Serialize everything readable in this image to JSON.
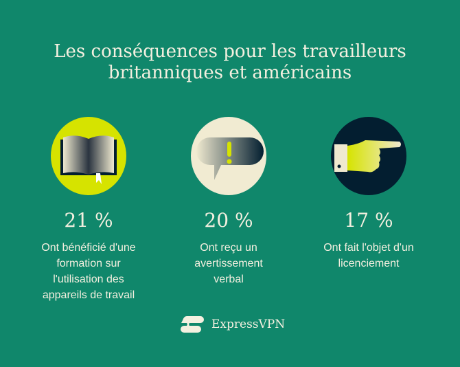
{
  "title": {
    "line1": "Les conséquences pour les travailleurs",
    "line2": "britanniques et américains"
  },
  "stats": [
    {
      "icon": "open-book-icon",
      "percent": "21 %",
      "lines": [
        "Ont bénéficié d'une",
        "formation sur",
        "l'utilisation des",
        "appareils de travail"
      ],
      "circle_color": "#d6e300"
    },
    {
      "icon": "speech-bubble-exclamation-icon",
      "percent": "20 %",
      "lines": [
        "Ont reçu un",
        "avertissement",
        "verbal"
      ],
      "circle_color": "#f1ebd2"
    },
    {
      "icon": "pointing-hand-icon",
      "percent": "17 %",
      "lines": [
        "Ont fait l'objet d'un",
        "licenciement"
      ],
      "circle_color": "#031e30"
    }
  ],
  "brand": {
    "name": "ExpressVPN"
  },
  "colors": {
    "background": "#10876b",
    "text": "#f4f0e0",
    "accent": "#d6e300"
  }
}
